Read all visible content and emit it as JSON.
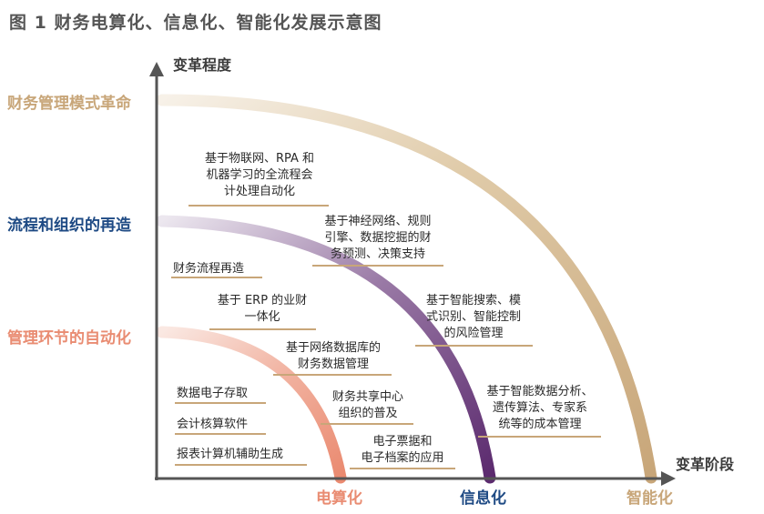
{
  "title": "图 1  财务电算化、信息化、智能化发展示意图",
  "axes": {
    "y_label": "变革程度",
    "x_label": "变革阶段"
  },
  "levels": {
    "revolution": "财务管理模式革命",
    "process": "流程和组织的再造",
    "automation": "管理环节的自动化"
  },
  "stages": {
    "electronic": "电算化",
    "information": "信息化",
    "intelligent": "智能化"
  },
  "notes": {
    "n1": [
      "基于物联网、RPA 和",
      "机器学习的全流程会",
      "计处理自动化"
    ],
    "n2": [
      "基于神经网络、规则",
      "引擎、数据挖掘的财",
      "务预测、决策支持"
    ],
    "n3": "财务流程再造",
    "n4": [
      "基于 ERP 的业财",
      "一体化"
    ],
    "n5": [
      "基于智能搜索、模",
      "式识别、智能控制",
      "的风险管理"
    ],
    "n6": [
      "基于网络数据库的",
      "财务数据管理"
    ],
    "n7": "数据电子存取",
    "n8": [
      "财务共享中心",
      "组织的普及"
    ],
    "n9": [
      "基于智能数据分析、",
      "遗传算法、专家系",
      "统等的成本管理"
    ],
    "n10": "会计核算软件",
    "n11": [
      "电子票据和",
      "电子档案的应用"
    ],
    "n12": "报表计算机辅助生成"
  },
  "colors": {
    "axis": "#555555",
    "arc_automation": "#ea8a70",
    "arc_information": "#5b2a6e",
    "arc_intelligent": "#c8a679",
    "underline": "#c8a679"
  }
}
